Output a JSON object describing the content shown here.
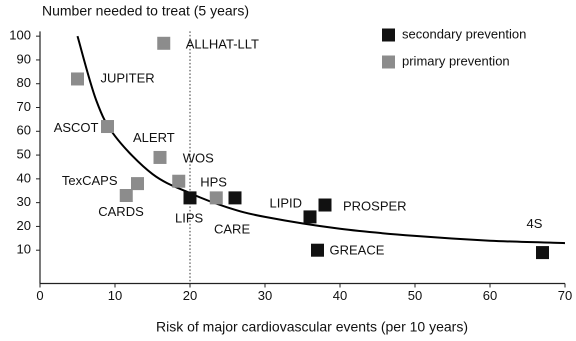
{
  "chart_data": {
    "type": "scatter",
    "y_axis_label": "Number needed to treat (5 years)",
    "x_axis_label": "Risk of major cardiovascular events (per 10 years)",
    "xlim": [
      0,
      70
    ],
    "xticks": [
      0,
      10,
      20,
      30,
      40,
      50,
      60,
      70
    ],
    "ylim": [
      -4,
      102
    ],
    "yticks": [
      10,
      20,
      30,
      40,
      50,
      60,
      70,
      80,
      90,
      100
    ],
    "reference_x": 20,
    "series": [
      {
        "name": "secondary prevention",
        "color": "#111111",
        "labels": [
          "LIPS",
          "CARE",
          "LIPID",
          "PROSPER",
          "GREACE",
          "4S"
        ],
        "x": [
          20,
          26,
          36,
          38,
          37,
          67
        ],
        "values": [
          32,
          32,
          24,
          29,
          10,
          9
        ]
      },
      {
        "name": "primary prevention",
        "color": "#8c8c8c",
        "labels": [
          "JUPITER",
          "ASCOT",
          "ALERT",
          "WOS",
          "TexCAPS",
          "CARDS",
          "ALLHAT-LLT",
          "HPS"
        ],
        "x": [
          5,
          9,
          16,
          18.5,
          13,
          11.5,
          16.5,
          23.5
        ],
        "values": [
          82,
          62,
          49,
          39,
          38,
          33,
          97,
          32
        ]
      }
    ],
    "curve": {
      "color": "#000000",
      "x": [
        5,
        7.5,
        10,
        15,
        20,
        25,
        30,
        40,
        50,
        60,
        70
      ],
      "values": [
        100,
        73,
        58,
        42,
        34,
        28,
        24,
        19,
        16,
        14,
        13
      ]
    }
  }
}
